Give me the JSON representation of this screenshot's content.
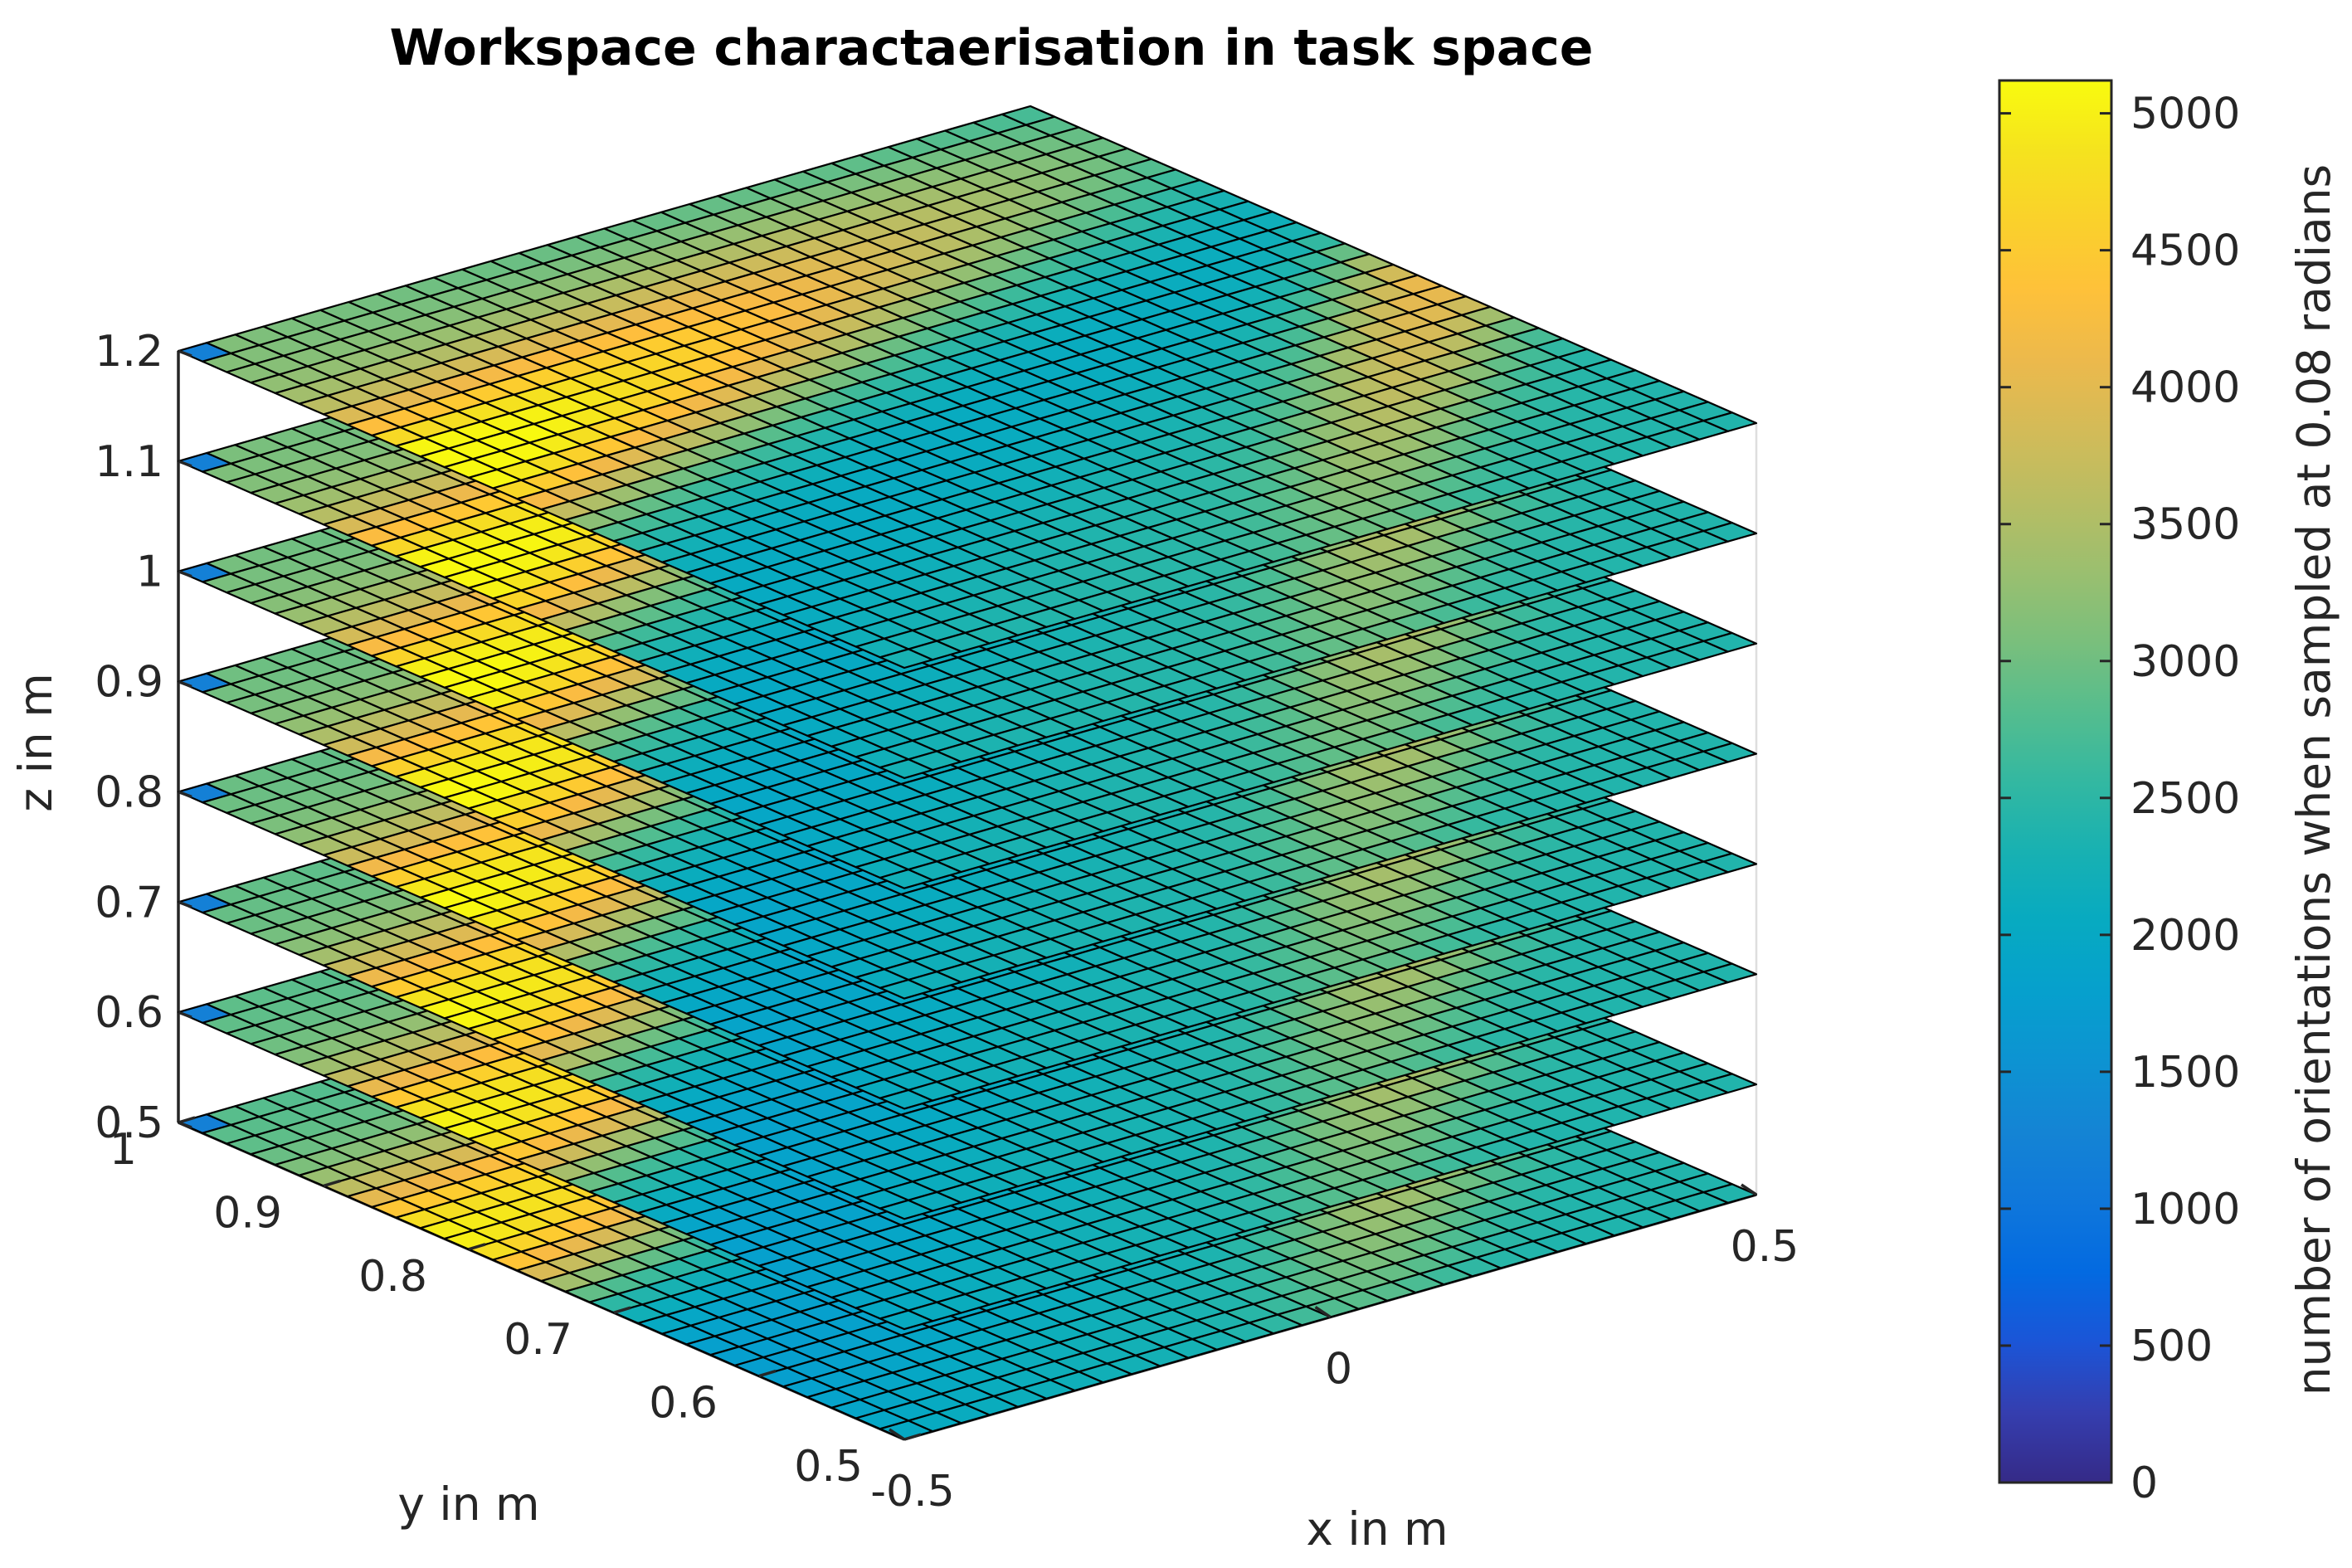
{
  "chart_data": {
    "type": "surface",
    "title": "Workspace charactaerisation in task space",
    "xlabel": "x in m",
    "ylabel": "y in m",
    "zlabel": "z in m",
    "x_ticks": [
      "-0.5",
      "0",
      "0.5"
    ],
    "y_ticks": [
      "0.5",
      "0.6",
      "0.7",
      "0.8",
      "0.9",
      "1"
    ],
    "z_ticks": [
      "0.5",
      "0.6",
      "0.7",
      "0.8",
      "0.9",
      "1",
      "1.1",
      "1.2"
    ],
    "xlim": [
      -0.5,
      0.5
    ],
    "ylim": [
      0.5,
      1.0
    ],
    "zlim": [
      0.5,
      1.2
    ],
    "z_levels": [
      0.5,
      0.6,
      0.7,
      0.8,
      0.9,
      1.0,
      1.1,
      1.2
    ],
    "grid": true,
    "colorbar": {
      "label": "number of orientations when sampled at 0.08 radians",
      "ticks": [
        "0",
        "500",
        "1000",
        "1500",
        "2000",
        "2500",
        "3000",
        "3500",
        "4000",
        "4500",
        "5000"
      ],
      "range": [
        0,
        5120
      ],
      "colormap": "parula"
    },
    "series": [
      {
        "z": 0.5,
        "value_range": [
          1000,
          5100
        ]
      },
      {
        "z": 0.6,
        "value_range": [
          1000,
          5100
        ]
      },
      {
        "z": 0.7,
        "value_range": [
          1000,
          5100
        ]
      },
      {
        "z": 0.8,
        "value_range": [
          1000,
          5100
        ]
      },
      {
        "z": 0.9,
        "value_range": [
          1000,
          5100
        ]
      },
      {
        "z": 1.0,
        "value_range": [
          1000,
          5100
        ]
      },
      {
        "z": 1.1,
        "value_range": [
          1000,
          5100
        ]
      },
      {
        "z": 1.2,
        "value_range": [
          1000,
          5100
        ]
      }
    ]
  }
}
